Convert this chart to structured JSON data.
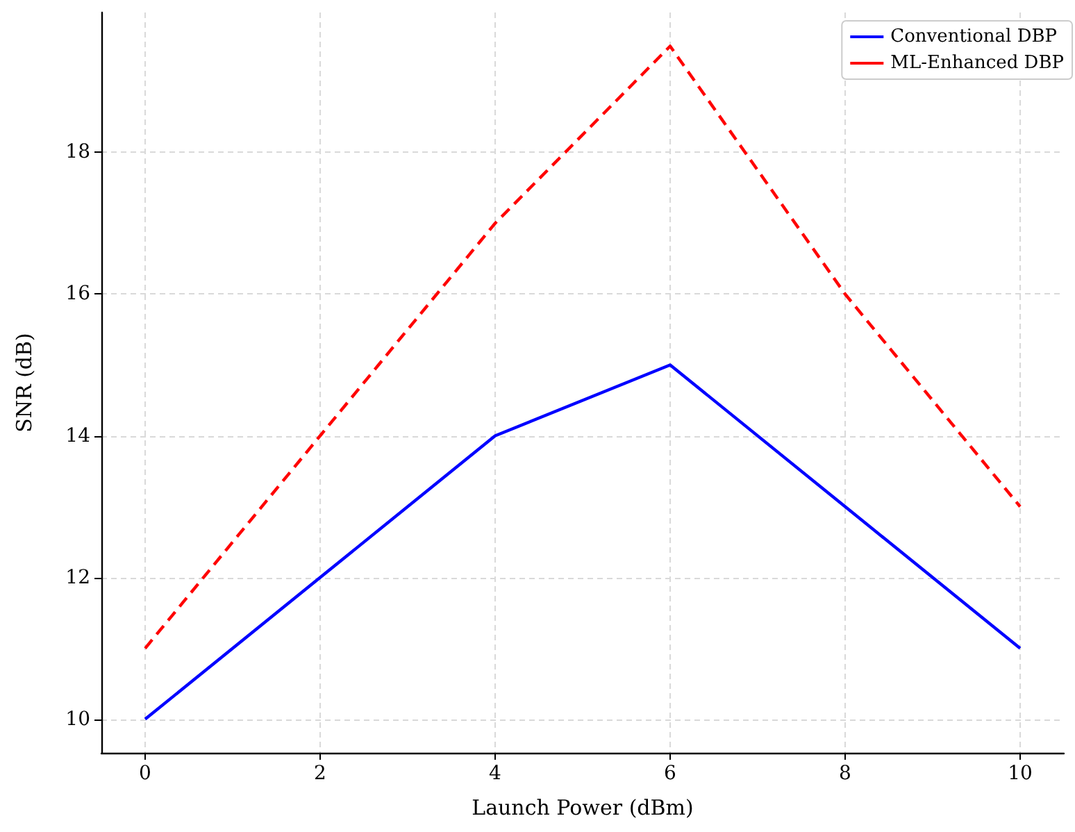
{
  "chart_data": {
    "type": "line",
    "xlabel": "Launch Power (dBm)",
    "ylabel": "SNR (dB)",
    "x": [
      0,
      2,
      4,
      6,
      8,
      10
    ],
    "series": [
      {
        "name": "Conventional DBP",
        "color": "#0000ff",
        "line_style": "solid",
        "values": [
          10,
          12,
          14,
          15,
          13,
          11
        ]
      },
      {
        "name": "ML-Enhanced DBP",
        "color": "#ff0000",
        "line_style": "dashed",
        "values": [
          11,
          14,
          17,
          19.5,
          16,
          13
        ]
      }
    ],
    "xlim": [
      -0.5,
      10.5
    ],
    "xticks": [
      0,
      2,
      4,
      6,
      8,
      10
    ],
    "ylim": [
      9.525,
      19.975
    ],
    "yticks": [
      10,
      12,
      14,
      16,
      18
    ],
    "grid": true,
    "legend": "top right",
    "marker": "none"
  }
}
